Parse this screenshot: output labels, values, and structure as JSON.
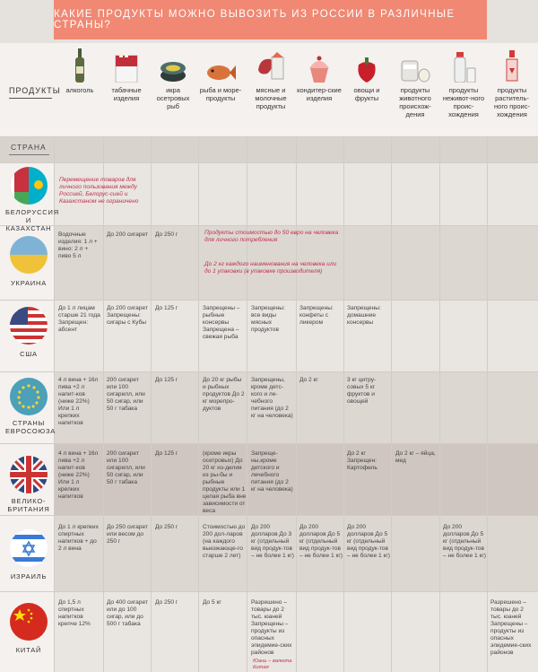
{
  "title": "Какие продукты можно вывозить из России в различные страны?",
  "products_label": "ПРОДУКТЫ",
  "country_label": "СТРАНА",
  "columns": [
    {
      "label": "алкоголь",
      "icon": "bottle-icon"
    },
    {
      "label": "табачные изделия",
      "icon": "cigarette-pack-icon"
    },
    {
      "label": "икра осетровых рыб",
      "icon": "caviar-can-icon"
    },
    {
      "label": "рыба и море-продукты",
      "icon": "fish-icon"
    },
    {
      "label": "мясные и молочные продукты",
      "icon": "meat-milk-icon"
    },
    {
      "label": "кондитер-ские изделия",
      "icon": "cupcake-icon"
    },
    {
      "label": "овощи и фрукты",
      "icon": "pepper-icon"
    },
    {
      "label": "продукты животного происхож-дения",
      "icon": "honey-egg-icon"
    },
    {
      "label": "продукты неживот-ного проис-хождения",
      "icon": "salt-icon"
    },
    {
      "label": "продукты раститель-ного проис-хождения",
      "icon": "oil-bottle-icon"
    }
  ],
  "countries": [
    {
      "name": "БЕЛОРУССИЯ И КАЗАХСТАН",
      "flag": "belarus-kazakhstan-flag",
      "note": "Перемещение товаров для личного пользования между Россией, Белорус-сией и Казахстаном не ограничено"
    },
    {
      "name": "УКРАИНА",
      "flag": "ukraine-flag",
      "alcohol": "Водочные изделия: 1 л + вино: 2 л + пиво 5 л",
      "tobacco": "До 200 сигарет",
      "caviar": "До 250 г",
      "note1": "Продукты стоимостью до 50 евро на человека для личного потребления",
      "note2": "До 2 кг каждого наименования на человека или до 1 упаковки (в упаковке производителя)"
    },
    {
      "name": "США",
      "flag": "usa-flag",
      "alcohol": "До 1 л лицам старше 21 года Запрещен: абсент",
      "tobacco": "До 200 сигарет Запрещены: сигары с Кубы",
      "caviar": "До 125 г",
      "fish": "Запрещены – рыбные консервы Запрещена – свежая рыба",
      "meat": "Запрещены: все виды мясных продуктов",
      "sweets": "Запрещены: конфеты с ликером",
      "veg": "Запрещены: домашние консервы"
    },
    {
      "name": "СТРАНЫ ЕВРОСОЮЗА",
      "flag": "eu-flag",
      "alcohol": "4 л вина + 16л пива +2 л напит-ков (ниже 22%) Или 1 л крепких напитков",
      "tobacco": "200 сигарет или 100 сигарилл, или 50 сигар, или 50 г табака",
      "caviar": "До 125 г",
      "fish": "До 20 кг рыбы и рыбных продуктов До 2 кг морепро-дуктов",
      "meat": "Запрещены, кроме детс-кого и ле-чебного питания (до 2 кг на человека)",
      "sweets": "До 2 кг",
      "veg": "3 кг цитру-совых 5 кг фруктов и овощей"
    },
    {
      "name": "ВЕЛИКО-БРИТАНИЯ",
      "flag": "uk-flag",
      "alcohol": "4 л вина + 16л пива +2 л напит-ков (ниже 22%) Или 1 л крепких напитков",
      "tobacco": "200 сигарет или 100 сигарилл, или 50 сигар, или 50 г табака",
      "caviar": "До 125 г",
      "fish": "(кроме икры осетровых) До 20 кг из-делия из ры-бы и рыбные продукты или 1 целая рыба вне зависимости от веса",
      "meat": "Запреще-ны,кроме детского и лечебного питания (до 2 кг на человека)",
      "veg": "До 2 кг Запрещен: Картофель",
      "animal": "До 2 кг – яйца, мед"
    },
    {
      "name": "ИЗРАИЛЬ",
      "flag": "israel-flag",
      "alcohol": "До 1 л крепких спиртных напитков + до 2 л вина",
      "tobacco": "До 250 сигарет или весом до 250 г",
      "caviar": "До 250 г",
      "fish": "Стоимостью до 200 дол-ларов (на каждого выезжающе-го старше 2 лет)",
      "meat": "До 200 долларов До 3 кг (отдельный вид продук-тов – не более 1 кг)",
      "sweets": "До 200 долларов До 5 кг (отдельный вид продук-тов – не более 1 кг)",
      "veg": "До 200 долларов До 5 кг (отдельный вид продук-тов – не более 1 кг)",
      "nonanimal": "До 200 долларов До 5 кг (отдельный вид продук-тов – не более 1 кг)"
    },
    {
      "name": "КИТАЙ",
      "flag": "china-flag",
      "alcohol": "До 1,5 л спиртных напитков крепче 12%",
      "tobacco": "До 400 сигарет или до 100 сигар, или до 500 г табака",
      "caviar": "До 250 г",
      "fish": "До 5 кг",
      "meat": "Разрешено – товары до 2 тыс. юаней Запрещены – продукты из опасных эпидемие-ских районов",
      "meat_note": "Юань – валюта Китая",
      "plant": "Разрешено – товары до 2 тыс. юаней Запрещены – продукты из опасных эпидемие-ских районов"
    }
  ],
  "colors": {
    "accent": "#f08873",
    "red_text": "#c0304a",
    "background": "#e5e1dd"
  }
}
